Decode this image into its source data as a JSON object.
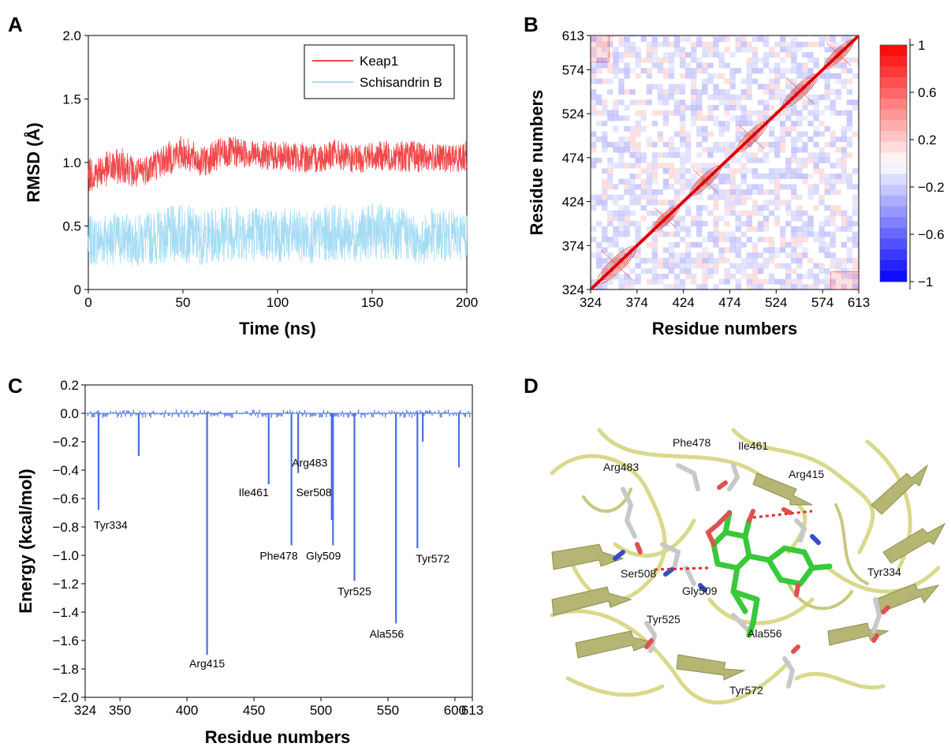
{
  "panels": {
    "a": {
      "letter": "A",
      "chart_data": {
        "type": "line",
        "xlabel": "Time (ns)",
        "ylabel": "RMSD (Å)",
        "xlim": [
          0,
          200
        ],
        "ylim": [
          0,
          2.0
        ],
        "xticks": [
          "0",
          "50",
          "100",
          "150",
          "200"
        ],
        "yticks": [
          "0",
          "0.5",
          "1.0",
          "1.5",
          "2.0"
        ],
        "legend_position": "top-right",
        "series": [
          {
            "name": "Keap1",
            "color": "#f0484b",
            "x": [
              0,
              10,
              20,
              25,
              30,
              40,
              50,
              60,
              70,
              80,
              90,
              100,
              110,
              120,
              130,
              140,
              150,
              160,
              170,
              180,
              190,
              200
            ],
            "mean": [
              0.9,
              0.95,
              0.98,
              0.9,
              0.95,
              1.02,
              1.08,
              1.0,
              1.07,
              1.08,
              1.06,
              1.05,
              1.04,
              1.03,
              1.07,
              1.02,
              1.05,
              1.05,
              1.05,
              1.04,
              1.03,
              1.05
            ],
            "amp": [
              0.13,
              0.14,
              0.14,
              0.12,
              0.13,
              0.13,
              0.14,
              0.12,
              0.13,
              0.12,
              0.11,
              0.12,
              0.12,
              0.12,
              0.12,
              0.11,
              0.12,
              0.12,
              0.13,
              0.11,
              0.11,
              0.12
            ]
          },
          {
            "name": "Schisandrin B",
            "color": "#a5dcf4",
            "x": [
              0,
              10,
              20,
              25,
              30,
              40,
              50,
              60,
              70,
              80,
              90,
              100,
              110,
              120,
              130,
              140,
              150,
              160,
              170,
              175,
              180,
              190,
              200
            ],
            "mean": [
              0.38,
              0.4,
              0.4,
              0.38,
              0.4,
              0.42,
              0.45,
              0.4,
              0.45,
              0.45,
              0.44,
              0.43,
              0.42,
              0.41,
              0.45,
              0.42,
              0.46,
              0.45,
              0.43,
              0.35,
              0.43,
              0.42,
              0.43
            ],
            "amp": [
              0.2,
              0.21,
              0.21,
              0.2,
              0.21,
              0.22,
              0.24,
              0.21,
              0.23,
              0.23,
              0.22,
              0.22,
              0.21,
              0.21,
              0.23,
              0.21,
              0.22,
              0.22,
              0.21,
              0.15,
              0.22,
              0.2,
              0.2
            ]
          }
        ]
      }
    },
    "b": {
      "letter": "B",
      "chart_data": {
        "type": "heatmap",
        "xlabel": "Residue numbers",
        "ylabel": "Residue numbers",
        "xlim": [
          324,
          613
        ],
        "ylim": [
          324,
          613
        ],
        "ticks": [
          "324",
          "374",
          "424",
          "474",
          "524",
          "574",
          "613"
        ],
        "colorbar": {
          "min": -1,
          "max": 1,
          "ticks": [
            "1",
            "0.6",
            "0.2",
            "−0.2",
            "−0.6",
            "−1"
          ],
          "low_color": "#0000ff",
          "high_color": "#ff0000"
        },
        "diagonal_value": 1,
        "positive_blocks": [
          {
            "x": [
              324,
              380
            ],
            "y": [
              324,
              380
            ],
            "value": 0.5
          },
          {
            "x": [
              385,
              425
            ],
            "y": [
              385,
              425
            ],
            "value": 0.5
          },
          {
            "x": [
              425,
              470
            ],
            "y": [
              425,
              470
            ],
            "value": 0.5
          },
          {
            "x": [
              475,
              520
            ],
            "y": [
              475,
              520
            ],
            "value": 0.5
          },
          {
            "x": [
              525,
              575
            ],
            "y": [
              525,
              575
            ],
            "value": 0.55
          },
          {
            "x": [
              570,
              613
            ],
            "y": [
              570,
              613
            ],
            "value": 0.5
          }
        ]
      }
    },
    "c": {
      "letter": "C",
      "chart_data": {
        "type": "bar",
        "xlabel": "Residue numbers",
        "ylabel": "Energy (kcal/mol)",
        "xlim": [
          324,
          613
        ],
        "ylim": [
          -2.0,
          0.2
        ],
        "xticks": [
          "324",
          "350",
          "400",
          "450",
          "500",
          "550",
          "600",
          "613"
        ],
        "yticks": [
          "0.2",
          "0.0",
          "−0.2",
          "−0.4",
          "−0.6",
          "−0.8",
          "−1.0",
          "−1.2",
          "−1.4",
          "−1.6",
          "−1.8",
          "−2.0"
        ],
        "color": "#4a6fe3",
        "bars": [
          {
            "residue": 334,
            "value": -0.68,
            "label": "Tyr334"
          },
          {
            "residue": 364,
            "value": -0.3
          },
          {
            "residue": 415,
            "value": -1.7,
            "label": "Arg415"
          },
          {
            "residue": 461,
            "value": -0.5,
            "label": "Ile461"
          },
          {
            "residue": 478,
            "value": -0.93,
            "label": "Phe478"
          },
          {
            "residue": 483,
            "value": -0.42,
            "label": "Arg483"
          },
          {
            "residue": 508,
            "value": -0.75,
            "label": "Ser508"
          },
          {
            "residue": 509,
            "value": -0.93,
            "label": "Gly509"
          },
          {
            "residue": 525,
            "value": -1.18,
            "label": "Tyr525"
          },
          {
            "residue": 556,
            "value": -1.48,
            "label": "Ala556"
          },
          {
            "residue": 572,
            "value": -0.95,
            "label": "Tyr572"
          },
          {
            "residue": 576,
            "value": -0.2
          },
          {
            "residue": 603,
            "value": -0.38
          }
        ]
      }
    },
    "d": {
      "letter": "D",
      "labels": [
        "Phe478",
        "Ile461",
        "Arg483",
        "Arg415",
        "Ser508",
        "Tyr334",
        "Gly509",
        "Tyr525",
        "Ala556",
        "Tyr572"
      ]
    }
  }
}
